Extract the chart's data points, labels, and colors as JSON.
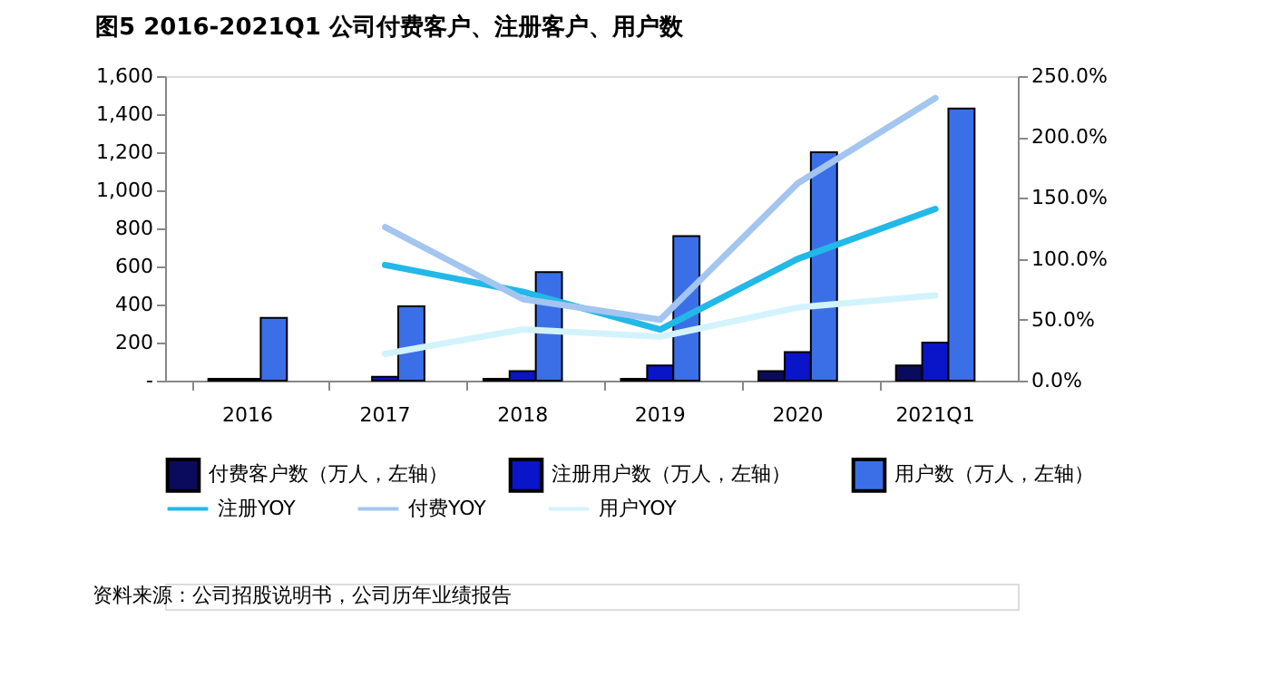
{
  "chart_data": {
    "type": "bar",
    "title": "图5  2016-2021Q1 公司付费客户、注册客户、用户数",
    "categories": [
      "2016",
      "2017",
      "2018",
      "2019",
      "2020",
      "2021Q1"
    ],
    "series": [
      {
        "name": "付费客户数（万人，左轴）",
        "color": "#0b0b5c",
        "values": [
          10,
          null,
          10,
          10,
          50,
          80
        ]
      },
      {
        "name": "注册用户数（万人，左轴）",
        "color": "#0a14c8",
        "values": [
          10,
          20,
          50,
          80,
          150,
          200
        ]
      },
      {
        "name": "用户数（万人，左轴）",
        "color": "#3b6fe8",
        "values": [
          330,
          390,
          570,
          760,
          1200,
          1430
        ]
      },
      {
        "name": "注册YOY",
        "type": "line",
        "axis": "y2",
        "color": "#22b8e8",
        "values": [
          null,
          95,
          73,
          42,
          100,
          141
        ]
      },
      {
        "name": "付费YOY",
        "type": "line",
        "axis": "y2",
        "color": "#a3c5f0",
        "values": [
          null,
          126,
          67,
          50,
          162,
          232
        ]
      },
      {
        "name": "用户YOY",
        "type": "line",
        "axis": "y2",
        "color": "#d3f3fc",
        "values": [
          null,
          22,
          42,
          36,
          60,
          70
        ]
      }
    ],
    "ylim": [
      0,
      1600
    ],
    "yticks": [
      {
        "value": 0,
        "label": "-"
      },
      {
        "value": 200,
        "label": "200"
      },
      {
        "value": 400,
        "label": "400"
      },
      {
        "value": 600,
        "label": "600"
      },
      {
        "value": 800,
        "label": "800"
      },
      {
        "value": 1000,
        "label": "1,000"
      },
      {
        "value": 1200,
        "label": "1,200"
      },
      {
        "value": 1400,
        "label": "1,400"
      },
      {
        "value": 1600,
        "label": "1,600"
      }
    ],
    "y2lim": [
      0,
      250
    ],
    "y2ticks": [
      {
        "value": 0,
        "label": "0.0%"
      },
      {
        "value": 50,
        "label": "50.0%"
      },
      {
        "value": 100,
        "label": "100.0%"
      },
      {
        "value": 150,
        "label": "150.0%"
      },
      {
        "value": 200,
        "label": "200.0%"
      },
      {
        "value": 250,
        "label": "250.0%"
      }
    ],
    "legend": "bottom",
    "grid": false,
    "annotations": [
      "资料来源：公司招股说明书，公司历年业绩报告"
    ]
  }
}
